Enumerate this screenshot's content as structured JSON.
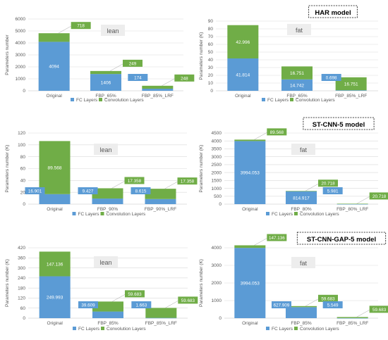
{
  "colors": {
    "fc": "#5b9bd5",
    "conv": "#70ad47",
    "axis": "#bfbfbf",
    "grid": "#d9d9d9",
    "text": "#595959"
  },
  "chart_data": [
    {
      "type": "bar",
      "stacked": true,
      "badge": "lean",
      "model_title": "",
      "ylabel": "Parameters number",
      "ylim": [
        0,
        6000
      ],
      "yticks": [
        "0",
        "1000",
        "2000",
        "3000",
        "4000",
        "5000",
        "6000"
      ],
      "categories": [
        "Original",
        "FBP_65%",
        "FBP_85%_LRF"
      ],
      "series": [
        {
          "name": "FC Layers",
          "values": [
            4094,
            1406,
            174
          ],
          "labels": [
            "4094",
            "1406",
            "174"
          ]
        },
        {
          "name": "Convolution Layers",
          "values": [
            718,
            249,
            248
          ],
          "labels": [
            "718",
            "249",
            "248"
          ]
        }
      ]
    },
    {
      "type": "bar",
      "stacked": true,
      "badge": "fat",
      "model_title": "HAR model",
      "ylabel": "Parameters number (K)",
      "ylim": [
        0,
        90
      ],
      "yticks": [
        "0",
        "10",
        "20",
        "30",
        "40",
        "50",
        "60",
        "70",
        "80",
        "90"
      ],
      "categories": [
        "Original",
        "FBP_65%",
        "FBP_85%_LRF"
      ],
      "series": [
        {
          "name": "FC Layers",
          "values": [
            41.814,
            14.742,
            0.698
          ],
          "labels": [
            "41.814",
            "14.742",
            "0.698"
          ]
        },
        {
          "name": "Convolution Layers",
          "values": [
            42.996,
            16.751,
            16.751
          ],
          "labels": [
            "42.996",
            "16.751",
            "16.751"
          ]
        }
      ]
    },
    {
      "type": "bar",
      "stacked": true,
      "badge": "lean",
      "model_title": "",
      "ylabel": "Parameters number (K)",
      "ylim": [
        0,
        120
      ],
      "yticks": [
        "0",
        "20",
        "40",
        "60",
        "80",
        "100",
        "120"
      ],
      "categories": [
        "Original",
        "FBP_90%",
        "FBP_90%_LRF"
      ],
      "series": [
        {
          "name": "FC Layers",
          "values": [
            16.901,
            9.427,
            8.615
          ],
          "labels": [
            "16.901",
            "9.427",
            "8.615"
          ]
        },
        {
          "name": "Convolution Layers",
          "values": [
            89.568,
            17.358,
            17.358
          ],
          "labels": [
            "89.568",
            "17.358",
            "17.358"
          ]
        }
      ]
    },
    {
      "type": "bar",
      "stacked": true,
      "badge": "fat",
      "model_title": "ST-CNN-5 model",
      "ylabel": "Parameters number (K)",
      "ylim": [
        0,
        4500
      ],
      "yticks": [
        "0",
        "500",
        "1000",
        "1500",
        "2000",
        "2500",
        "3000",
        "3500",
        "4000",
        "4500"
      ],
      "categories": [
        "Original",
        "FBP_80%",
        "FBP_80%_LRF"
      ],
      "series": [
        {
          "name": "FC Layers",
          "values": [
            3994.053,
            814.917,
            5.981
          ],
          "labels": [
            "3994.053",
            "814.917",
            "5.981"
          ]
        },
        {
          "name": "Convolution Layers",
          "values": [
            89.568,
            20.718,
            20.718
          ],
          "labels": [
            "89.568",
            "20.718",
            "20.718"
          ]
        }
      ]
    },
    {
      "type": "bar",
      "stacked": true,
      "badge": "lean",
      "model_title": "",
      "ylabel": "Parameters number (K)",
      "ylim": [
        0,
        420
      ],
      "yticks": [
        "0",
        "60",
        "120",
        "180",
        "240",
        "300",
        "360",
        "420"
      ],
      "categories": [
        "Original",
        "FBP_85%",
        "FBP_85%_LRF"
      ],
      "series": [
        {
          "name": "FC Layers",
          "values": [
            249.993,
            39.609,
            1.663
          ],
          "labels": [
            "249.993",
            "39.609",
            "1.663"
          ]
        },
        {
          "name": "Convolution Layers",
          "values": [
            147.136,
            59.683,
            59.683
          ],
          "labels": [
            "147.136",
            "59.683",
            "59.683"
          ]
        }
      ]
    },
    {
      "type": "bar",
      "stacked": true,
      "badge": "fat",
      "model_title": "ST-CNN-GAP-5 model",
      "ylabel": "Parameters number (K)",
      "ylim": [
        0,
        4000
      ],
      "yticks": [
        "0",
        "1000",
        "2000",
        "3000",
        "4000"
      ],
      "categories": [
        "Original",
        "FBP_85%",
        "FBP_85%_LRF"
      ],
      "series": [
        {
          "name": "FC Layers",
          "values": [
            3994.053,
            627.909,
            5.549
          ],
          "labels": [
            "3994.053",
            "627.909",
            "5.549"
          ]
        },
        {
          "name": "Convolution Layers",
          "values": [
            147.136,
            59.683,
            59.683
          ],
          "labels": [
            "147.136",
            "59.683",
            "59.683"
          ]
        }
      ]
    }
  ]
}
